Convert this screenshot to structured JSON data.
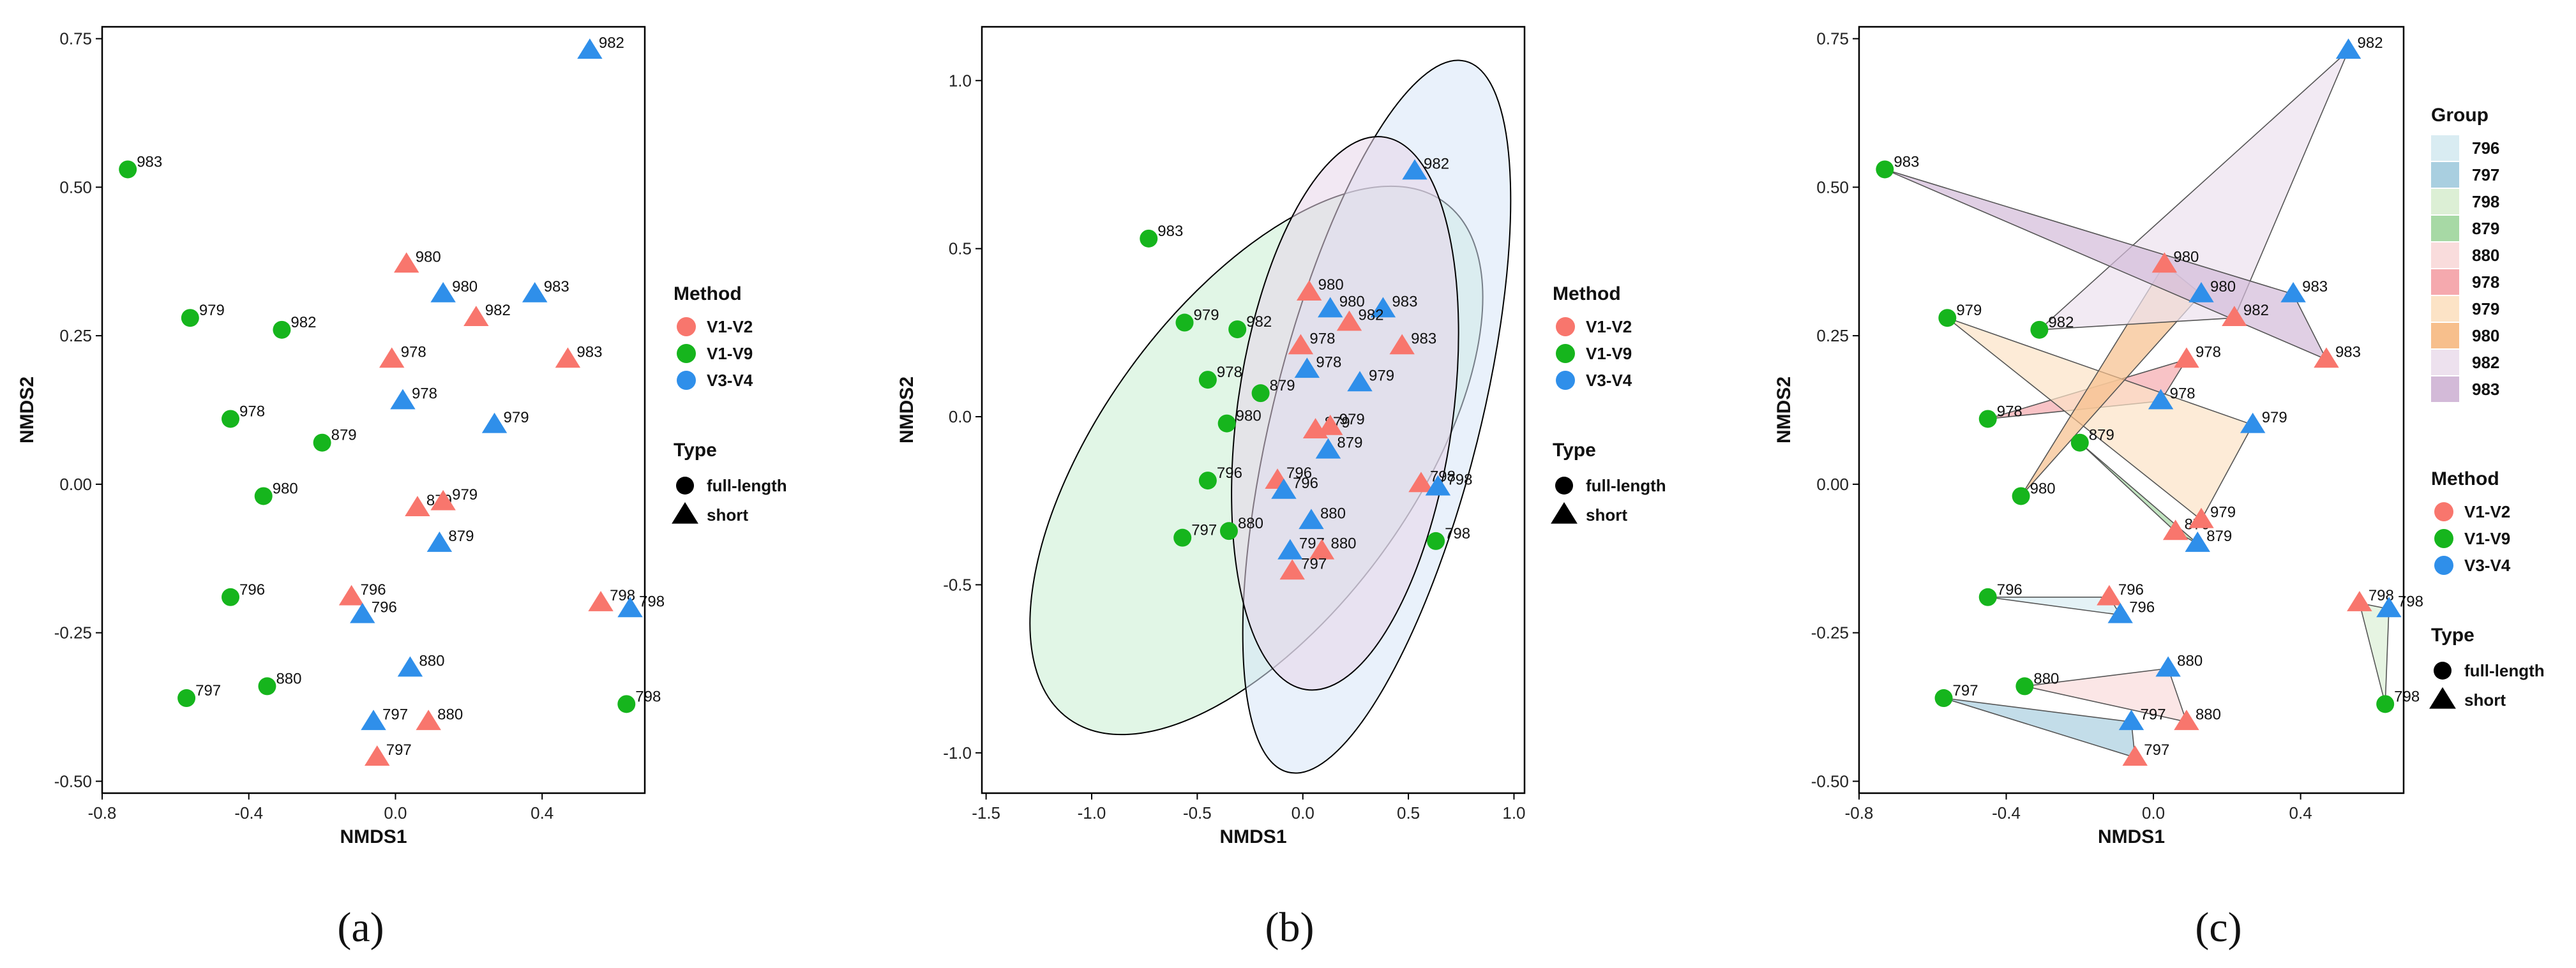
{
  "colors": {
    "V1-V2": "#F8766D",
    "V1-V9": "#16B51D",
    "V3-V4": "#2F8FEA"
  },
  "group_colors": {
    "796": "#D9ECF2",
    "797": "#A9CFE0",
    "798": "#DCEFD5",
    "879": "#A7D9A5",
    "880": "#F9DCDC",
    "978": "#F5A9AE",
    "979": "#FCE3C6",
    "980": "#F7BF8C",
    "982": "#EDE1EE",
    "983": "#D3BAD8"
  },
  "legend": {
    "group_title": "Group",
    "groups": [
      "796",
      "797",
      "798",
      "879",
      "880",
      "978",
      "979",
      "980",
      "982",
      "983"
    ],
    "method_title": "Method",
    "methods": [
      "V1-V2",
      "V1-V9",
      "V3-V4"
    ],
    "type_title": "Type",
    "types": [
      "full-length",
      "short"
    ]
  },
  "chart_data": [
    {
      "panel_label": "(a)",
      "type": "scatter",
      "xlabel": "NMDS1",
      "ylabel": "NMDS2",
      "xlim": [
        -0.8,
        0.68
      ],
      "ylim": [
        -0.52,
        0.77
      ],
      "xticks": [
        -0.8,
        -0.4,
        0.0,
        0.4
      ],
      "xtick_labels": [
        "-0.8",
        "-0.4",
        "0.0",
        "0.4"
      ],
      "yticks": [
        -0.5,
        -0.25,
        0.0,
        0.25,
        0.5,
        0.75
      ],
      "ytick_labels": [
        "-0.50",
        "-0.25",
        "0.00",
        "0.25",
        "0.50",
        "0.75"
      ],
      "points": [
        {
          "x": 0.53,
          "y": 0.73,
          "label": "982",
          "method": "V3-V4",
          "type": "short"
        },
        {
          "x": -0.73,
          "y": 0.53,
          "label": "983",
          "method": "V1-V9",
          "type": "full-length"
        },
        {
          "x": 0.03,
          "y": 0.37,
          "label": "980",
          "method": "V1-V2",
          "type": "short"
        },
        {
          "x": 0.13,
          "y": 0.32,
          "label": "980",
          "method": "V3-V4",
          "type": "short"
        },
        {
          "x": 0.38,
          "y": 0.32,
          "label": "983",
          "method": "V3-V4",
          "type": "short"
        },
        {
          "x": -0.56,
          "y": 0.28,
          "label": "979",
          "method": "V1-V9",
          "type": "full-length"
        },
        {
          "x": -0.31,
          "y": 0.26,
          "label": "982",
          "method": "V1-V9",
          "type": "full-length"
        },
        {
          "x": 0.22,
          "y": 0.28,
          "label": "982",
          "method": "V1-V2",
          "type": "short"
        },
        {
          "x": -0.01,
          "y": 0.21,
          "label": "978",
          "method": "V1-V2",
          "type": "short"
        },
        {
          "x": 0.47,
          "y": 0.21,
          "label": "983",
          "method": "V1-V2",
          "type": "short"
        },
        {
          "x": 0.02,
          "y": 0.14,
          "label": "978",
          "method": "V3-V4",
          "type": "short"
        },
        {
          "x": -0.45,
          "y": 0.11,
          "label": "978",
          "method": "V1-V9",
          "type": "full-length"
        },
        {
          "x": 0.27,
          "y": 0.1,
          "label": "979",
          "method": "V3-V4",
          "type": "short"
        },
        {
          "x": -0.2,
          "y": 0.07,
          "label": "879",
          "method": "V1-V9",
          "type": "full-length"
        },
        {
          "x": -0.36,
          "y": -0.02,
          "label": "980",
          "method": "V1-V9",
          "type": "full-length"
        },
        {
          "x": 0.06,
          "y": -0.04,
          "label": "879",
          "method": "V1-V2",
          "type": "short"
        },
        {
          "x": 0.13,
          "y": -0.03,
          "label": "979",
          "method": "V1-V2",
          "type": "short"
        },
        {
          "x": 0.12,
          "y": -0.1,
          "label": "879",
          "method": "V3-V4",
          "type": "short"
        },
        {
          "x": -0.45,
          "y": -0.19,
          "label": "796",
          "method": "V1-V9",
          "type": "full-length"
        },
        {
          "x": -0.12,
          "y": -0.19,
          "label": "796",
          "method": "V1-V2",
          "type": "short"
        },
        {
          "x": -0.09,
          "y": -0.22,
          "label": "796",
          "method": "V3-V4",
          "type": "short"
        },
        {
          "x": 0.56,
          "y": -0.2,
          "label": "798",
          "method": "V1-V2",
          "type": "short"
        },
        {
          "x": 0.64,
          "y": -0.21,
          "label": "798",
          "method": "V3-V4",
          "type": "short"
        },
        {
          "x": 0.04,
          "y": -0.31,
          "label": "880",
          "method": "V3-V4",
          "type": "short"
        },
        {
          "x": -0.57,
          "y": -0.36,
          "label": "797",
          "method": "V1-V9",
          "type": "full-length"
        },
        {
          "x": -0.35,
          "y": -0.34,
          "label": "880",
          "method": "V1-V9",
          "type": "full-length"
        },
        {
          "x": 0.63,
          "y": -0.37,
          "label": "798",
          "method": "V1-V9",
          "type": "full-length"
        },
        {
          "x": -0.06,
          "y": -0.4,
          "label": "797",
          "method": "V3-V4",
          "type": "short"
        },
        {
          "x": 0.09,
          "y": -0.4,
          "label": "880",
          "method": "V1-V2",
          "type": "short"
        },
        {
          "x": -0.05,
          "y": -0.46,
          "label": "797",
          "method": "V1-V2",
          "type": "short"
        }
      ]
    },
    {
      "panel_label": "(b)",
      "type": "scatter",
      "xlabel": "NMDS1",
      "ylabel": "NMDS2",
      "xlim": [
        -1.52,
        1.05
      ],
      "ylim": [
        -1.12,
        1.16
      ],
      "xticks": [
        -1.5,
        -1.0,
        -0.5,
        0.0,
        0.5,
        1.0
      ],
      "xtick_labels": [
        "-1.5",
        "-1.0",
        "-0.5",
        "0.0",
        "0.5",
        "1.0"
      ],
      "yticks": [
        -1.0,
        -0.5,
        0.0,
        0.5,
        1.0
      ],
      "ytick_labels": [
        "-1.0",
        "-0.5",
        "0.0",
        "0.5",
        "1.0"
      ],
      "ellipses": [
        {
          "method": "V1-V9",
          "cx": -0.22,
          "cy": -0.13,
          "rx": 0.74,
          "ry": 0.95,
          "angle": 36
        },
        {
          "method": "V3-V4",
          "cx": 0.35,
          "cy": 0.0,
          "rx": 0.49,
          "ry": 1.09,
          "angle": 14
        },
        {
          "method": "V1-V2",
          "cx": 0.2,
          "cy": 0.01,
          "rx": 0.51,
          "ry": 0.83,
          "angle": 8
        }
      ],
      "points": [
        {
          "x": 0.53,
          "y": 0.73,
          "label": "982",
          "method": "V3-V4",
          "type": "short"
        },
        {
          "x": -0.73,
          "y": 0.53,
          "label": "983",
          "method": "V1-V9",
          "type": "full-length"
        },
        {
          "x": 0.03,
          "y": 0.37,
          "label": "980",
          "method": "V1-V2",
          "type": "short"
        },
        {
          "x": 0.13,
          "y": 0.32,
          "label": "980",
          "method": "V3-V4",
          "type": "short"
        },
        {
          "x": 0.38,
          "y": 0.32,
          "label": "983",
          "method": "V3-V4",
          "type": "short"
        },
        {
          "x": -0.56,
          "y": 0.28,
          "label": "979",
          "method": "V1-V9",
          "type": "full-length"
        },
        {
          "x": -0.31,
          "y": 0.26,
          "label": "982",
          "method": "V1-V9",
          "type": "full-length"
        },
        {
          "x": 0.22,
          "y": 0.28,
          "label": "982",
          "method": "V1-V2",
          "type": "short"
        },
        {
          "x": -0.01,
          "y": 0.21,
          "label": "978",
          "method": "V1-V2",
          "type": "short"
        },
        {
          "x": 0.47,
          "y": 0.21,
          "label": "983",
          "method": "V1-V2",
          "type": "short"
        },
        {
          "x": 0.02,
          "y": 0.14,
          "label": "978",
          "method": "V3-V4",
          "type": "short"
        },
        {
          "x": -0.45,
          "y": 0.11,
          "label": "978",
          "method": "V1-V9",
          "type": "full-length"
        },
        {
          "x": 0.27,
          "y": 0.1,
          "label": "979",
          "method": "V3-V4",
          "type": "short"
        },
        {
          "x": -0.2,
          "y": 0.07,
          "label": "879",
          "method": "V1-V9",
          "type": "full-length"
        },
        {
          "x": -0.36,
          "y": -0.02,
          "label": "980",
          "method": "V1-V9",
          "type": "full-length"
        },
        {
          "x": 0.06,
          "y": -0.04,
          "label": "879",
          "method": "V1-V2",
          "type": "short"
        },
        {
          "x": 0.13,
          "y": -0.03,
          "label": "979",
          "method": "V1-V2",
          "type": "short"
        },
        {
          "x": 0.12,
          "y": -0.1,
          "label": "879",
          "method": "V3-V4",
          "type": "short"
        },
        {
          "x": -0.45,
          "y": -0.19,
          "label": "796",
          "method": "V1-V9",
          "type": "full-length"
        },
        {
          "x": -0.12,
          "y": -0.19,
          "label": "796",
          "method": "V1-V2",
          "type": "short"
        },
        {
          "x": -0.09,
          "y": -0.22,
          "label": "796",
          "method": "V3-V4",
          "type": "short"
        },
        {
          "x": 0.56,
          "y": -0.2,
          "label": "798",
          "method": "V1-V2",
          "type": "short"
        },
        {
          "x": 0.64,
          "y": -0.21,
          "label": "798",
          "method": "V3-V4",
          "type": "short"
        },
        {
          "x": 0.04,
          "y": -0.31,
          "label": "880",
          "method": "V3-V4",
          "type": "short"
        },
        {
          "x": -0.57,
          "y": -0.36,
          "label": "797",
          "method": "V1-V9",
          "type": "full-length"
        },
        {
          "x": -0.35,
          "y": -0.34,
          "label": "880",
          "method": "V1-V9",
          "type": "full-length"
        },
        {
          "x": 0.63,
          "y": -0.37,
          "label": "798",
          "method": "V1-V9",
          "type": "full-length"
        },
        {
          "x": -0.06,
          "y": -0.4,
          "label": "797",
          "method": "V3-V4",
          "type": "short"
        },
        {
          "x": 0.09,
          "y": -0.4,
          "label": "880",
          "method": "V1-V2",
          "type": "short"
        },
        {
          "x": -0.05,
          "y": -0.46,
          "label": "797",
          "method": "V1-V2",
          "type": "short"
        }
      ]
    },
    {
      "panel_label": "(c)",
      "type": "scatter",
      "xlabel": "NMDS1",
      "ylabel": "NMDS2",
      "xlim": [
        -0.8,
        0.68
      ],
      "ylim": [
        -0.52,
        0.77
      ],
      "xticks": [
        -0.8,
        -0.4,
        0.0,
        0.4
      ],
      "xtick_labels": [
        "-0.8",
        "-0.4",
        "0.0",
        "0.4"
      ],
      "yticks": [
        -0.5,
        -0.25,
        0.0,
        0.25,
        0.5,
        0.75
      ],
      "ytick_labels": [
        "-0.50",
        "-0.25",
        "0.00",
        "0.25",
        "0.50",
        "0.75"
      ],
      "hull_groups": [
        "796",
        "797",
        "798",
        "879",
        "880",
        "978",
        "979",
        "980",
        "982",
        "983"
      ],
      "points": [
        {
          "x": 0.53,
          "y": 0.73,
          "label": "982",
          "method": "V3-V4",
          "type": "short"
        },
        {
          "x": -0.73,
          "y": 0.53,
          "label": "983",
          "method": "V1-V9",
          "type": "full-length"
        },
        {
          "x": 0.03,
          "y": 0.37,
          "label": "980",
          "method": "V1-V2",
          "type": "short"
        },
        {
          "x": 0.13,
          "y": 0.32,
          "label": "980",
          "method": "V3-V4",
          "type": "short"
        },
        {
          "x": 0.38,
          "y": 0.32,
          "label": "983",
          "method": "V3-V4",
          "type": "short"
        },
        {
          "x": -0.56,
          "y": 0.28,
          "label": "979",
          "method": "V1-V9",
          "type": "full-length"
        },
        {
          "x": -0.31,
          "y": 0.26,
          "label": "982",
          "method": "V1-V9",
          "type": "full-length"
        },
        {
          "x": 0.22,
          "y": 0.28,
          "label": "982",
          "method": "V1-V2",
          "type": "short"
        },
        {
          "x": 0.09,
          "y": 0.21,
          "label": "978",
          "method": "V1-V2",
          "type": "short"
        },
        {
          "x": 0.47,
          "y": 0.21,
          "label": "983",
          "method": "V1-V2",
          "type": "short"
        },
        {
          "x": 0.02,
          "y": 0.14,
          "label": "978",
          "method": "V3-V4",
          "type": "short"
        },
        {
          "x": -0.45,
          "y": 0.11,
          "label": "978",
          "method": "V1-V9",
          "type": "full-length"
        },
        {
          "x": 0.27,
          "y": 0.1,
          "label": "979",
          "method": "V3-V4",
          "type": "short"
        },
        {
          "x": -0.2,
          "y": 0.07,
          "label": "879",
          "method": "V1-V9",
          "type": "full-length"
        },
        {
          "x": -0.36,
          "y": -0.02,
          "label": "980",
          "method": "V1-V9",
          "type": "full-length"
        },
        {
          "x": 0.06,
          "y": -0.08,
          "label": "879",
          "method": "V1-V2",
          "type": "short"
        },
        {
          "x": 0.13,
          "y": -0.06,
          "label": "979",
          "method": "V1-V2",
          "type": "short"
        },
        {
          "x": 0.12,
          "y": -0.1,
          "label": "879",
          "method": "V3-V4",
          "type": "short"
        },
        {
          "x": -0.45,
          "y": -0.19,
          "label": "796",
          "method": "V1-V9",
          "type": "full-length"
        },
        {
          "x": -0.12,
          "y": -0.19,
          "label": "796",
          "method": "V1-V2",
          "type": "short"
        },
        {
          "x": -0.09,
          "y": -0.22,
          "label": "796",
          "method": "V3-V4",
          "type": "short"
        },
        {
          "x": 0.56,
          "y": -0.2,
          "label": "798",
          "method": "V1-V2",
          "type": "short"
        },
        {
          "x": 0.64,
          "y": -0.21,
          "label": "798",
          "method": "V3-V4",
          "type": "short"
        },
        {
          "x": 0.04,
          "y": -0.31,
          "label": "880",
          "method": "V3-V4",
          "type": "short"
        },
        {
          "x": -0.57,
          "y": -0.36,
          "label": "797",
          "method": "V1-V9",
          "type": "full-length"
        },
        {
          "x": -0.35,
          "y": -0.34,
          "label": "880",
          "method": "V1-V9",
          "type": "full-length"
        },
        {
          "x": 0.63,
          "y": -0.37,
          "label": "798",
          "method": "V1-V9",
          "type": "full-length"
        },
        {
          "x": -0.06,
          "y": -0.4,
          "label": "797",
          "method": "V3-V4",
          "type": "short"
        },
        {
          "x": 0.09,
          "y": -0.4,
          "label": "880",
          "method": "V1-V2",
          "type": "short"
        },
        {
          "x": -0.05,
          "y": -0.46,
          "label": "797",
          "method": "V1-V2",
          "type": "short"
        }
      ]
    }
  ]
}
